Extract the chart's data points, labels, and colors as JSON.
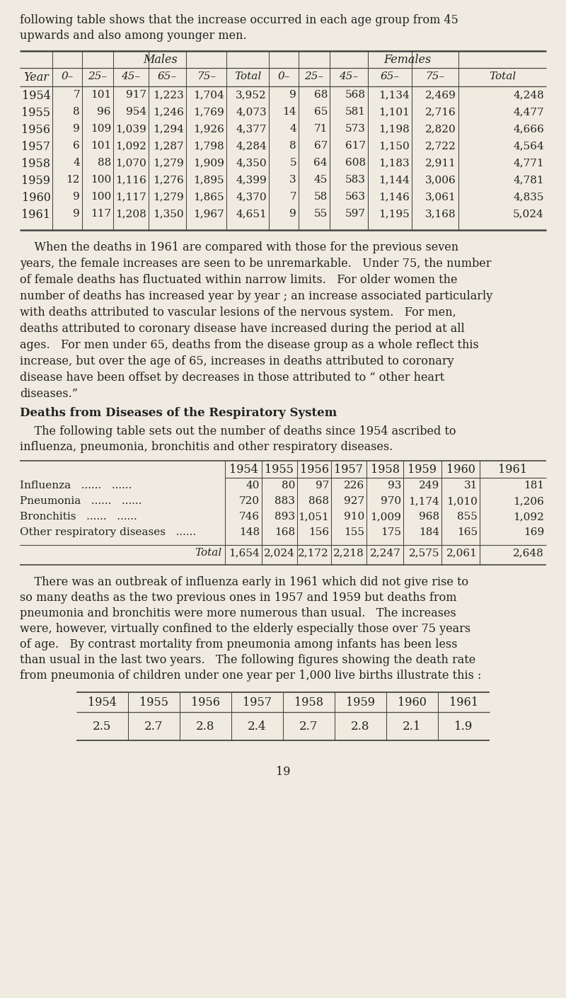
{
  "bg_color": "#f0ebe0",
  "text_color": "#1a1a1a",
  "page_number": "19",
  "intro_text_lines": [
    "following table shows that the increase occurred in each age group from 45",
    "upwards and also among younger men."
  ],
  "table1": {
    "title_males": "Males",
    "title_females": "Females",
    "col_headers": [
      "Year",
      "0–",
      "25–",
      "45–",
      "65–",
      "75–",
      "Total",
      "0–",
      "25–",
      "45–",
      "65–",
      "75–",
      "Total"
    ],
    "rows": [
      [
        "1954",
        "7",
        "101",
        "917",
        "1,223",
        "1,704",
        "3,952",
        "9",
        "68",
        "568",
        "1,134",
        "2,469",
        "4,248"
      ],
      [
        "1955",
        "8",
        "96",
        "954",
        "1,246",
        "1,769",
        "4,073",
        "14",
        "65",
        "581",
        "1,101",
        "2,716",
        "4,477"
      ],
      [
        "1956",
        "9",
        "109",
        "1,039",
        "1,294",
        "1,926",
        "4,377",
        "4",
        "71",
        "573",
        "1,198",
        "2,820",
        "4,666"
      ],
      [
        "1957",
        "6",
        "101",
        "1,092",
        "1,287",
        "1,798",
        "4,284",
        "8",
        "67",
        "617",
        "1,150",
        "2,722",
        "4,564"
      ],
      [
        "1958",
        "4",
        "88",
        "1,070",
        "1,279",
        "1,909",
        "4,350",
        "5",
        "64",
        "608",
        "1,183",
        "2,911",
        "4,771"
      ],
      [
        "1959",
        "12",
        "100",
        "1,116",
        "1,276",
        "1,895",
        "4,399",
        "3",
        "45",
        "583",
        "1,144",
        "3,006",
        "4,781"
      ],
      [
        "1960",
        "9",
        "100",
        "1,117",
        "1,279",
        "1,865",
        "4,370",
        "7",
        "58",
        "563",
        "1,146",
        "3,061",
        "4,835"
      ],
      [
        "1961",
        "9",
        "117",
        "1,208",
        "1,350",
        "1,967",
        "4,651",
        "9",
        "55",
        "597",
        "1,195",
        "3,168",
        "5,024"
      ]
    ]
  },
  "para1_lines": [
    "    When the deaths in 1961 are compared with those for the previous seven",
    "years, the female increases are seen to be unremarkable.   Under 75, the number",
    "of female deaths has fluctuated within narrow limits.   For older women the",
    "number of deaths has increased year by year ; an increase associated particularly",
    "with deaths attributed to vascular lesions of the nervous system.   For men,",
    "deaths attributed to coronary disease have increased during the period at all",
    "ages.   For men under 65, deaths from the disease group as a whole reflect this",
    "increase, but over the age of 65, increases in deaths attributed to coronary",
    "disease have been offset by decreases in those attributed to “ other heart",
    "diseases.”"
  ],
  "section_heading": "Deaths from Diseases of the Respiratory System",
  "para2_lines": [
    "    The following table sets out the number of deaths since 1954 ascribed to",
    "influenza, pneumonia, bronchitis and other respiratory diseases."
  ],
  "table2": {
    "col_headers": [
      "1954",
      "1955",
      "1956",
      "1957",
      "1958",
      "1959",
      "1960",
      "1961"
    ],
    "row_labels": [
      "Influenza",
      "Pneumonia",
      "Bronchitis",
      "Other respiratory diseases"
    ],
    "row_dots": [
      "   ......   ......",
      "   ......   ......",
      "   ......   ......",
      "   ......"
    ],
    "rows": [
      [
        "40",
        "80",
        "97",
        "226",
        "93",
        "249",
        "31",
        "181"
      ],
      [
        "720",
        "883",
        "868",
        "927",
        "970",
        "1,174",
        "1,010",
        "1,206"
      ],
      [
        "746",
        "893",
        "1,051",
        "910",
        "1,009",
        "968",
        "855",
        "1,092"
      ],
      [
        "148",
        "168",
        "156",
        "155",
        "175",
        "184",
        "165",
        "169"
      ]
    ],
    "total_row": [
      "1,654",
      "2,024",
      "2,172",
      "2,218",
      "2,247",
      "2,575",
      "2,061",
      "2,648"
    ]
  },
  "para3_lines": [
    "    There was an outbreak of influenza early in 1961 which did not give rise to",
    "so many deaths as the two previous ones in 1957 and 1959 but deaths from",
    "pneumonia and bronchitis were more numerous than usual.   The increases",
    "were, however, virtually confined to the elderly especially those over 75 years",
    "of age.   By contrast mortality from pneumonia among infants has been less",
    "than usual in the last two years.   The following figures showing the death rate",
    "from pneumonia of children under one year per 1,000 live births illustrate this :"
  ],
  "table3": {
    "col_headers": [
      "1954",
      "1955",
      "1956",
      "1957",
      "1958",
      "1959",
      "1960",
      "1961"
    ],
    "values": [
      "2.5",
      "2.7",
      "2.8",
      "2.4",
      "2.7",
      "2.8",
      "2.1",
      "1.9"
    ]
  }
}
